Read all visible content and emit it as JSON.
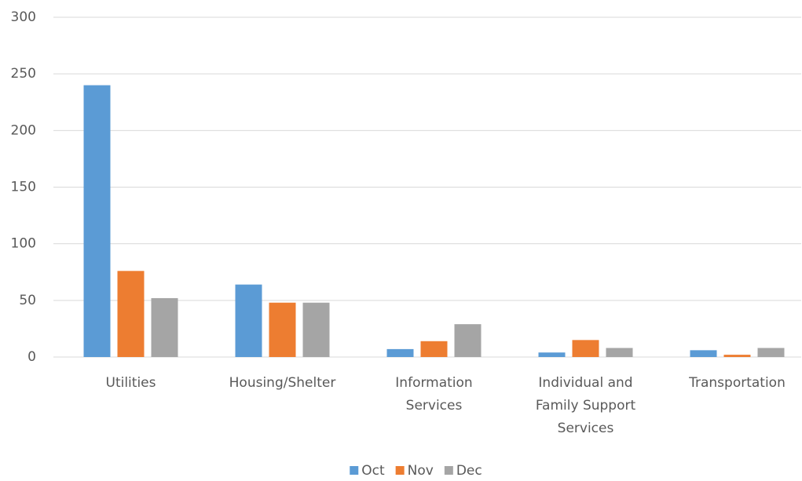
{
  "chart_data": {
    "type": "bar",
    "categories": [
      "Utilities",
      "Housing/Shelter",
      "Information Services",
      "Individual and Family Support Services",
      "Transportation"
    ],
    "series": [
      {
        "name": "Oct",
        "color": "#5b9bd5",
        "values": [
          240,
          64,
          7,
          4,
          6
        ]
      },
      {
        "name": "Nov",
        "color": "#ed7d31",
        "values": [
          76,
          48,
          14,
          15,
          2
        ]
      },
      {
        "name": "Dec",
        "color": "#a5a5a5",
        "values": [
          52,
          48,
          29,
          8,
          8
        ]
      }
    ],
    "ylim": [
      0,
      300
    ],
    "yticks": [
      0,
      50,
      100,
      150,
      200,
      250,
      300
    ],
    "grid": true,
    "legend": "bottom"
  }
}
